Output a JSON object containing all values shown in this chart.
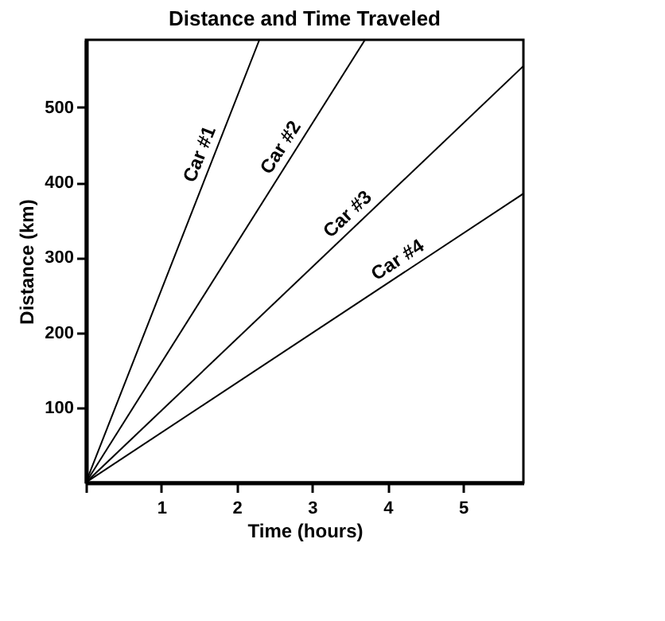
{
  "chart_data": {
    "type": "line",
    "title": "Distance and Time Traveled",
    "xlabel": "Time (hours)",
    "ylabel": "Distance (km)",
    "xlim": [
      0,
      5.8
    ],
    "ylim": [
      0,
      590
    ],
    "xticks": [
      {
        "value": 0,
        "label": null
      },
      1,
      2,
      3,
      4,
      5
    ],
    "yticks": [
      100,
      200,
      300,
      400,
      500
    ],
    "series": [
      {
        "name": "Car #1",
        "color": "#000000",
        "x": [
          0,
          2.3
        ],
        "values": [
          0,
          590
        ]
      },
      {
        "name": "Car #2",
        "color": "#000000",
        "x": [
          0,
          3.7
        ],
        "values": [
          0,
          590
        ]
      },
      {
        "name": "Car #3",
        "color": "#000000",
        "x": [
          0,
          5.8
        ],
        "values": [
          0,
          555
        ]
      },
      {
        "name": "Car #4",
        "color": "#000000",
        "x": [
          0,
          5.8
        ],
        "values": [
          0,
          385
        ]
      }
    ],
    "grid": false,
    "legend": false,
    "marker": "none",
    "line_style": "solid"
  }
}
